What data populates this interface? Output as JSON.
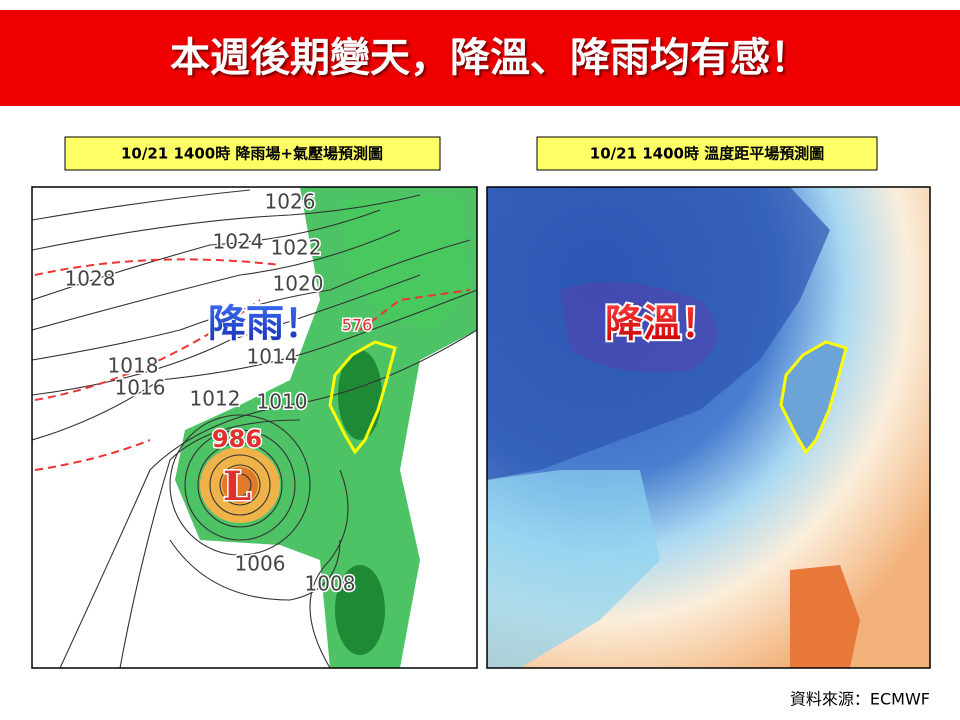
{
  "header": {
    "title": "本週後期變天，降溫、降雨均有感！"
  },
  "panels": [
    {
      "caption": "10/21 1400時  降雨場+氣壓場預測圖",
      "annotation": "降雨！",
      "labels": [
        "1026",
        "1024",
        "1022",
        "1028",
        "1020",
        "1018",
        "1016",
        "1014",
        "1012",
        "1010",
        "986",
        "L",
        "1006",
        "1008",
        "576"
      ]
    },
    {
      "caption": "10/21 1400時  溫度距平場預測圖",
      "annotation": "降溫！"
    }
  ],
  "source": "資料來源：ECMWF"
}
